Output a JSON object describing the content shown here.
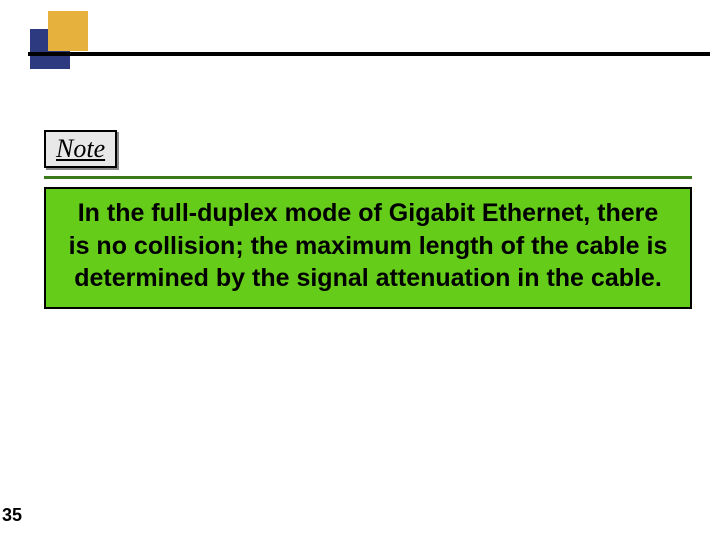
{
  "slide": {
    "logo": {
      "color_back": "#2e3a80",
      "color_front": "#e6b23d"
    },
    "note_label": "Note",
    "note_label_bg": "#e8e8e8",
    "underline_color": "#3a7a1a",
    "callout": {
      "bg": "#66cc1a",
      "text": "In the full-duplex mode of Gigabit Ethernet, there is no collision; the maximum length of the cable is determined  by the signal attenuation in the cable.",
      "font_size_pt": 25,
      "font_weight": 700,
      "font_family": "Arial"
    },
    "page_number": "35",
    "background": "#ffffff"
  }
}
